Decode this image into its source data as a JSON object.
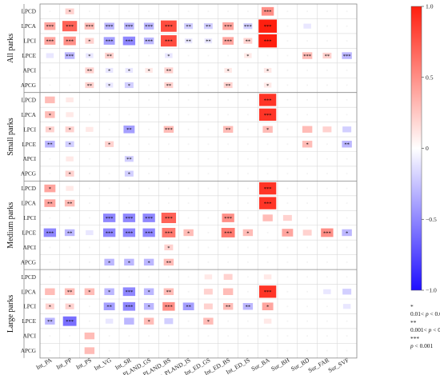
{
  "chart_data": {
    "type": "heatmap",
    "groups": [
      {
        "name": "All parks",
        "rows": [
          "LPCD",
          "LPCA",
          "LPCI",
          "LPCE",
          "APCI",
          "APCG"
        ]
      },
      {
        "name": "Small parks",
        "rows": [
          "LPCD",
          "LPCA",
          "LPCI",
          "LPCE",
          "APCI",
          "APCG"
        ]
      },
      {
        "name": "Medium parks",
        "rows": [
          "LPCD",
          "LPCA",
          "LPCI",
          "LPCE",
          "APCI",
          "APCG"
        ]
      },
      {
        "name": "Large parks",
        "rows": [
          "LPCD",
          "LPCA",
          "LPCI",
          "LPCE",
          "APCI",
          "APCG"
        ]
      }
    ],
    "columns": [
      "Int_PA",
      "Int_PP",
      "Int_PS",
      "Int_VG",
      "Int_SR",
      "Int_PLAND_GS",
      "Int_PLAND_BS",
      "Int_PLAND_IS",
      "Int_ED_GS",
      "Int_ED_BS",
      "Int_ED_IS",
      "Sur_BA",
      "Sur_BH",
      "Sur_BD",
      "Sur_FAR",
      "Sur_SVF"
    ],
    "values": [
      [
        0,
        0.2,
        0,
        0,
        0,
        0,
        0,
        0,
        0,
        0,
        0,
        0.5,
        0,
        0,
        0,
        0
      ],
      [
        0.4,
        0.7,
        0.3,
        -0.3,
        -0.3,
        -0.3,
        0.8,
        -0.2,
        -0.2,
        0.4,
        -0.2,
        1.0,
        0,
        -0.1,
        0,
        0
      ],
      [
        0.4,
        0.5,
        0.2,
        -0.4,
        -0.5,
        -0.3,
        0.8,
        -0.1,
        -0.1,
        0.4,
        0.2,
        1.0,
        0,
        0,
        0,
        0
      ],
      [
        -0.1,
        -0.3,
        -0.1,
        0.2,
        0,
        0,
        -0.1,
        0,
        0,
        0,
        0.1,
        0,
        0,
        0.3,
        0.2,
        -0.3
      ],
      [
        0,
        0,
        0.2,
        -0.1,
        -0.1,
        0.1,
        0.2,
        0,
        0,
        0.1,
        0,
        0.1,
        0,
        0,
        0,
        0
      ],
      [
        0,
        0,
        0.2,
        -0.1,
        -0.2,
        0,
        0.2,
        0,
        0,
        0.2,
        0,
        0.1,
        0,
        0,
        0,
        0
      ],
      [
        0.3,
        0.1,
        0,
        0,
        0,
        0,
        0,
        0,
        0,
        0,
        0,
        0.9,
        0,
        0,
        0,
        0
      ],
      [
        0.3,
        0.1,
        0,
        0,
        0,
        0,
        0,
        0,
        0,
        0,
        0,
        0.9,
        0,
        0,
        0,
        0
      ],
      [
        0.2,
        0.2,
        0.1,
        0,
        -0.4,
        0,
        0.3,
        0,
        0,
        0.3,
        0,
        0.3,
        0,
        0.3,
        0.2,
        -0.2
      ],
      [
        -0.3,
        -0.2,
        0,
        0.2,
        0,
        0,
        0,
        0,
        0,
        0,
        0,
        0,
        0,
        0.3,
        0,
        -0.3
      ],
      [
        0,
        0.1,
        0,
        0,
        -0.2,
        0,
        0,
        0,
        0,
        0,
        0,
        0,
        0,
        0,
        0,
        0
      ],
      [
        0,
        0.2,
        0,
        0,
        -0.2,
        0,
        0,
        0,
        0,
        0,
        0,
        0,
        0,
        0,
        0,
        0
      ],
      [
        0.4,
        0.1,
        0,
        0,
        0,
        0,
        0,
        0,
        0,
        0,
        0,
        0.9,
        0,
        0,
        0,
        0
      ],
      [
        0.4,
        0.3,
        0,
        0,
        0,
        0,
        0,
        0,
        0,
        0,
        0,
        0.9,
        0,
        0,
        0,
        0
      ],
      [
        0,
        0,
        0,
        -0.5,
        -0.5,
        -0.5,
        0.7,
        0,
        0,
        0.5,
        0,
        0.3,
        0.2,
        0,
        0,
        0
      ],
      [
        -0.5,
        -0.3,
        -0.1,
        -0.5,
        -0.5,
        -0.5,
        0.6,
        0.3,
        0,
        0.6,
        0.3,
        0,
        0.4,
        0.2,
        0.5,
        -0.3
      ],
      [
        0,
        0,
        0,
        0,
        0,
        0,
        0.2,
        0,
        0,
        0,
        0,
        0,
        0,
        0,
        0,
        0
      ],
      [
        0,
        0,
        0,
        -0.3,
        -0.3,
        -0.3,
        0.3,
        0,
        0,
        0,
        0,
        0,
        0,
        0,
        0,
        0
      ],
      [
        0,
        0,
        0,
        0,
        0,
        0,
        0,
        0,
        0.1,
        0.2,
        0,
        0.1,
        0,
        0,
        0,
        0
      ],
      [
        0.3,
        0.3,
        0.3,
        -0.3,
        -0.5,
        -0.3,
        0.3,
        0,
        0.2,
        0.3,
        0,
        0.9,
        0,
        0,
        -0.1,
        -0.2
      ],
      [
        0.2,
        0.2,
        0,
        -0.4,
        -0.5,
        -0.3,
        0.5,
        -0.4,
        0.2,
        0.3,
        -0.3,
        0.4,
        0,
        0,
        0,
        -0.1
      ],
      [
        -0.3,
        -0.6,
        0,
        -0.1,
        -0.3,
        0.3,
        -0.2,
        0,
        0.3,
        0,
        0,
        0.1,
        0,
        0,
        0,
        0
      ],
      [
        0,
        0,
        0.3,
        0,
        0,
        0,
        0,
        0,
        0,
        0,
        0,
        0,
        0,
        0,
        0,
        0
      ],
      [
        0,
        0,
        0.3,
        0,
        0,
        0,
        0,
        0,
        0,
        0,
        0,
        0,
        0,
        0,
        0,
        0
      ]
    ],
    "significance": [
      [
        "",
        "*",
        "",
        "",
        "",
        "",
        "",
        "",
        "",
        "",
        "",
        "***",
        "",
        "",
        "",
        ""
      ],
      [
        "***",
        "***",
        "***",
        "***",
        "***",
        "***",
        "***",
        "**",
        "**",
        "***",
        "***",
        "***",
        "",
        "",
        "",
        ""
      ],
      [
        "***",
        "***",
        "*",
        "***",
        "***",
        "***",
        "***",
        "**",
        "**",
        "***",
        "**",
        "***",
        "",
        "",
        "",
        ""
      ],
      [
        "",
        "***",
        "*",
        "**",
        "",
        "",
        "*",
        "",
        "",
        "",
        "*",
        "",
        "",
        "***",
        "**",
        "***"
      ],
      [
        "",
        "",
        "**",
        "*",
        "*",
        "*",
        "**",
        "",
        "",
        "*",
        "",
        "*",
        "",
        "",
        "",
        ""
      ],
      [
        "",
        "",
        "**",
        "*",
        "*",
        "",
        "**",
        "",
        "",
        "**",
        "",
        "*",
        "",
        "",
        "",
        ""
      ],
      [
        "",
        "",
        "",
        "",
        "",
        "",
        "",
        "",
        "",
        "",
        "",
        "***",
        "",
        "",
        "",
        ""
      ],
      [
        "*",
        "",
        "",
        "",
        "",
        "",
        "",
        "",
        "",
        "",
        "",
        "***",
        "",
        "",
        "",
        ""
      ],
      [
        "*",
        "*",
        "",
        "",
        "**",
        "",
        "***",
        "",
        "",
        "**",
        "",
        "*",
        "",
        "",
        "",
        ""
      ],
      [
        "**",
        "*",
        "",
        "*",
        "",
        "",
        "",
        "",
        "",
        "",
        "",
        "",
        "",
        "*",
        "",
        "**"
      ],
      [
        "",
        "",
        "",
        "",
        "**",
        "",
        "",
        "",
        "",
        "",
        "",
        "",
        "",
        "",
        "",
        ""
      ],
      [
        "",
        "*",
        "",
        "",
        "*",
        "",
        "",
        "",
        "",
        "",
        "",
        "",
        "",
        "",
        "",
        ""
      ],
      [
        "*",
        "",
        "",
        "",
        "",
        "",
        "",
        "",
        "",
        "",
        "",
        "***",
        "",
        "",
        "",
        ""
      ],
      [
        "**",
        "**",
        "",
        "",
        "",
        "",
        "",
        "",
        "",
        "",
        "",
        "***",
        "",
        "",
        "",
        ""
      ],
      [
        "",
        "",
        "",
        "***",
        "***",
        "***",
        "***",
        "",
        "",
        "***",
        "",
        "",
        "",
        "",
        "",
        ""
      ],
      [
        "***",
        "**",
        "",
        "***",
        "***",
        "***",
        "***",
        "*",
        "",
        "***",
        "*",
        "",
        "*",
        "",
        "***",
        "*"
      ],
      [
        "",
        "",
        "",
        "",
        "",
        "",
        "*",
        "",
        "",
        "",
        "",
        "",
        "",
        "",
        "",
        ""
      ],
      [
        "",
        "",
        "",
        "*",
        "*",
        "*",
        "**",
        "",
        "",
        "",
        "",
        "",
        "",
        "",
        "",
        ""
      ],
      [
        "",
        "",
        "",
        "",
        "",
        "",
        "",
        "",
        "",
        "",
        "",
        "",
        "",
        "",
        "",
        ""
      ],
      [
        "",
        "**",
        "*",
        "*",
        "***",
        "*",
        "**",
        "",
        "",
        "",
        "",
        "***",
        "",
        "",
        "",
        ""
      ],
      [
        "*",
        "*",
        "",
        "**",
        "***",
        "*",
        "***",
        "**",
        "",
        "**",
        "**",
        "*",
        "",
        "",
        "",
        ""
      ],
      [
        "**",
        "***",
        "",
        "",
        "",
        "*",
        "",
        "",
        "*",
        "",
        "",
        "",
        "",
        "",
        "",
        ""
      ],
      [
        "",
        "",
        "",
        "",
        "",
        "",
        "",
        "",
        "",
        "",
        "",
        "",
        "",
        "",
        "",
        ""
      ],
      [
        "",
        "",
        "",
        "",
        "",
        "",
        "",
        "",
        "",
        "",
        "",
        "",
        "",
        "",
        "",
        ""
      ]
    ],
    "colorbar": {
      "min": -1.0,
      "max": 1.0,
      "ticks": [
        1.0,
        0.5,
        0,
        -0.5,
        -1.0
      ],
      "tick_labels": [
        "1.0",
        "0.5",
        "0",
        "−0.5",
        "−1.0"
      ]
    },
    "colors": {
      "positive": "#ff1f0f",
      "zero": "#ffffff",
      "negative": "#1f0fff"
    },
    "legend_notes": [
      {
        "stars": "*",
        "text": "0.01< p < 0.05"
      },
      {
        "stars": "**",
        "text": "0.001< p < 0.01"
      },
      {
        "stars": "***",
        "text": "p < 0.001"
      }
    ]
  }
}
